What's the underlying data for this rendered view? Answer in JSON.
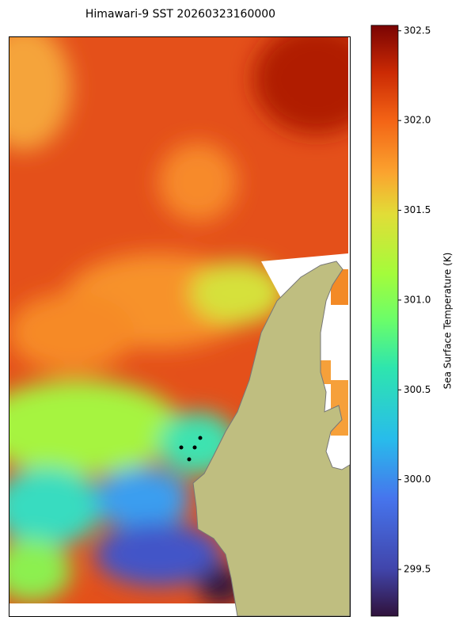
{
  "title": "Himawari-9 SST 20260323160000",
  "colorbar": {
    "label": "Sea Surface Temperature (K)",
    "lim": [
      299.24,
      302.53
    ],
    "ticks": [
      299.5,
      {
        "value": 300,
        "label": "300.0"
      },
      300.5,
      {
        "value": 301,
        "label": "301.0"
      },
      301.5,
      {
        "value": 302,
        "label": "302.0"
      },
      302.5
    ]
  }
}
